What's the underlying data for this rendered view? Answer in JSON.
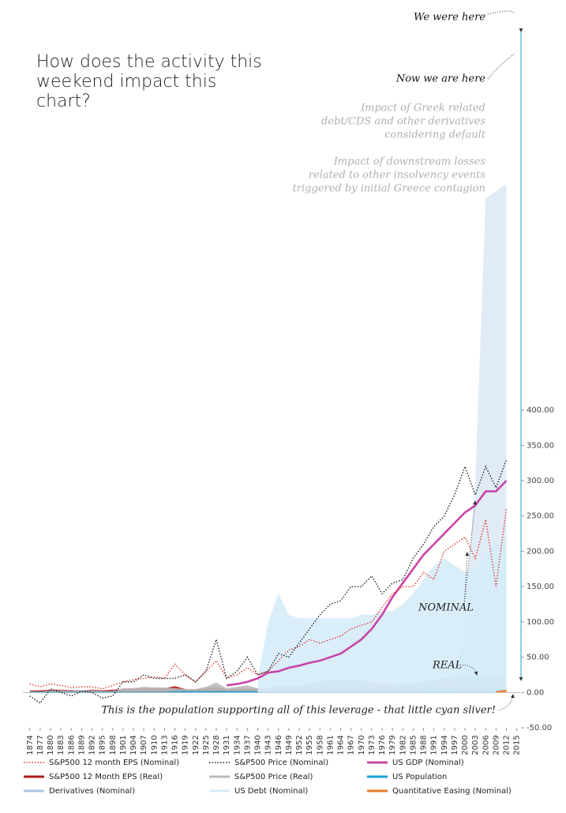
{
  "chart_data": {
    "type": "line",
    "title": "How does the activity this weekend impact this chart?",
    "annotations": {
      "we_were_here": "We were here",
      "now_we_are_here": "Now we are here",
      "greek_impact": [
        "Impact of Greek related",
        "debt/CDS and other derivatives",
        "considering default"
      ],
      "downstream_impact": [
        "Impact of downstream losses",
        "related to other insolvency events",
        "triggered by initial Greece contagion"
      ],
      "nominal": "NOMINAL",
      "real": "REAL",
      "population_note": "This is the population supporting all of this leverage - that little cyan sliver!"
    },
    "x": [
      1874,
      1877,
      1880,
      1883,
      1886,
      1889,
      1892,
      1895,
      1898,
      1901,
      1904,
      1907,
      1910,
      1913,
      1916,
      1919,
      1922,
      1925,
      1928,
      1931,
      1934,
      1937,
      1940,
      1943,
      1946,
      1949,
      1952,
      1955,
      1958,
      1961,
      1964,
      1967,
      1970,
      1973,
      1976,
      1979,
      1982,
      1985,
      1988,
      1991,
      1994,
      1997,
      2000,
      2003,
      2006,
      2009,
      2012
    ],
    "xlim": [
      1872,
      2016
    ],
    "xticks": [
      1874,
      1877,
      1880,
      1883,
      1886,
      1889,
      1892,
      1895,
      1898,
      1901,
      1904,
      1907,
      1910,
      1913,
      1916,
      1919,
      1922,
      1925,
      1928,
      1931,
      1934,
      1937,
      1940,
      1943,
      1946,
      1949,
      1952,
      1955,
      1958,
      1961,
      1964,
      1967,
      1970,
      1973,
      1976,
      1979,
      1982,
      1985,
      1988,
      1991,
      1994,
      1997,
      2000,
      2003,
      2006,
      2009,
      2012,
      2015
    ],
    "ylim": [
      -50,
      980
    ],
    "yticks": [
      {
        "value": -50,
        "label": "-50.00"
      },
      {
        "value": 0,
        "label": "0.00"
      },
      {
        "value": 50,
        "label": "50.00"
      },
      {
        "value": 100,
        "label": "100.00"
      },
      {
        "value": 150,
        "label": "150.00"
      },
      {
        "value": 200,
        "label": "200.00"
      },
      {
        "value": 250,
        "label": "250.00"
      },
      {
        "value": 300,
        "label": "300.00"
      },
      {
        "value": 350,
        "label": "350.00"
      },
      {
        "value": 400,
        "label": "400.00"
      }
    ],
    "series": [
      {
        "name": "S&P500 12 month EPS (Nominal)",
        "color": "#e03a2f",
        "style": "dotted",
        "values": [
          12,
          8,
          12,
          10,
          7,
          8,
          8,
          5,
          10,
          15,
          18,
          20,
          22,
          20,
          40,
          25,
          15,
          30,
          45,
          20,
          25,
          35,
          25,
          30,
          45,
          60,
          65,
          75,
          70,
          75,
          80,
          90,
          95,
          100,
          120,
          140,
          150,
          150,
          170,
          160,
          200,
          210,
          220,
          190,
          245,
          150,
          260
        ]
      },
      {
        "name": "S&P500 Price (Nominal)",
        "color": "#222222",
        "style": "dotted",
        "values": [
          -5,
          -15,
          5,
          0,
          -5,
          2,
          0,
          -8,
          -5,
          15,
          15,
          25,
          20,
          20,
          20,
          25,
          15,
          30,
          75,
          20,
          30,
          50,
          25,
          30,
          55,
          50,
          70,
          90,
          110,
          125,
          130,
          150,
          150,
          165,
          140,
          155,
          160,
          190,
          210,
          235,
          250,
          280,
          320,
          280,
          320,
          290,
          330
        ]
      },
      {
        "name": "US GDP (Nominal)",
        "color": "#c845a8",
        "style": "line",
        "values": [
          null,
          null,
          null,
          null,
          null,
          null,
          null,
          null,
          null,
          null,
          null,
          null,
          null,
          null,
          null,
          null,
          null,
          null,
          null,
          10,
          12,
          15,
          20,
          28,
          30,
          35,
          38,
          42,
          45,
          50,
          55,
          65,
          75,
          90,
          110,
          135,
          155,
          175,
          195,
          210,
          225,
          240,
          255,
          265,
          285,
          285,
          300
        ]
      },
      {
        "name": "S&P500 12 Month EPS (Real)",
        "color": "#b01c1c",
        "style": "area",
        "values": [
          3,
          3,
          4,
          4,
          3,
          3,
          4,
          3,
          4,
          5,
          6,
          6,
          7,
          6,
          9,
          5,
          4,
          6,
          8,
          4,
          5,
          6,
          5,
          5,
          6,
          7,
          7,
          8,
          8,
          8,
          9,
          9,
          9,
          10,
          10,
          10,
          9,
          9,
          10,
          9,
          12,
          13,
          14,
          11,
          15,
          9,
          16
        ]
      },
      {
        "name": "S&P500 Price (Real)",
        "color": "#bbbbbb",
        "style": "area",
        "values": [
          2,
          1,
          3,
          3,
          2,
          3,
          3,
          2,
          2,
          6,
          6,
          8,
          7,
          7,
          6,
          5,
          5,
          8,
          14,
          6,
          8,
          10,
          6,
          6,
          9,
          8,
          10,
          13,
          15,
          17,
          18,
          19,
          17,
          15,
          12,
          11,
          11,
          14,
          16,
          18,
          20,
          24,
          28,
          22,
          25,
          18,
          26
        ]
      },
      {
        "name": "US Population",
        "color": "#1aa3d9",
        "style": "area",
        "values": [
          1,
          1,
          1,
          1,
          1,
          1,
          1,
          1,
          1,
          1,
          1,
          1,
          1,
          1,
          2,
          2,
          2,
          2,
          2,
          2,
          2,
          2,
          2,
          2,
          2,
          2,
          2,
          2,
          3,
          3,
          3,
          3,
          3,
          3,
          3,
          3,
          3,
          3,
          3,
          4,
          4,
          4,
          4,
          4,
          4,
          5,
          5
        ]
      },
      {
        "name": "Derivatives (Nominal)",
        "color": "#a9c6e6",
        "style": "area",
        "values": [
          null,
          null,
          null,
          null,
          null,
          null,
          null,
          null,
          null,
          null,
          null,
          null,
          null,
          null,
          null,
          null,
          null,
          null,
          null,
          null,
          null,
          null,
          null,
          null,
          null,
          null,
          null,
          null,
          null,
          null,
          null,
          null,
          null,
          null,
          null,
          null,
          null,
          null,
          null,
          null,
          null,
          0,
          100,
          300,
          700,
          710,
          720
        ]
      },
      {
        "name": "US Debt (Nominal)",
        "color": "#d6ecfa",
        "style": "area",
        "values": [
          null,
          null,
          null,
          null,
          null,
          null,
          null,
          null,
          null,
          null,
          null,
          null,
          null,
          null,
          null,
          null,
          null,
          null,
          null,
          null,
          null,
          null,
          20,
          100,
          140,
          110,
          105,
          105,
          105,
          105,
          105,
          105,
          110,
          110,
          115,
          115,
          125,
          140,
          160,
          180,
          190,
          180,
          170,
          175,
          200,
          210,
          220
        ]
      },
      {
        "name": "Quantitative Easing (Nominal)",
        "color": "#e87a2e",
        "style": "area",
        "values": [
          null,
          null,
          null,
          null,
          null,
          null,
          null,
          null,
          null,
          null,
          null,
          null,
          null,
          null,
          null,
          null,
          null,
          null,
          null,
          null,
          null,
          null,
          null,
          null,
          null,
          null,
          null,
          null,
          null,
          null,
          null,
          null,
          null,
          null,
          null,
          null,
          null,
          null,
          null,
          null,
          null,
          null,
          null,
          null,
          null,
          2,
          4
        ]
      }
    ]
  }
}
